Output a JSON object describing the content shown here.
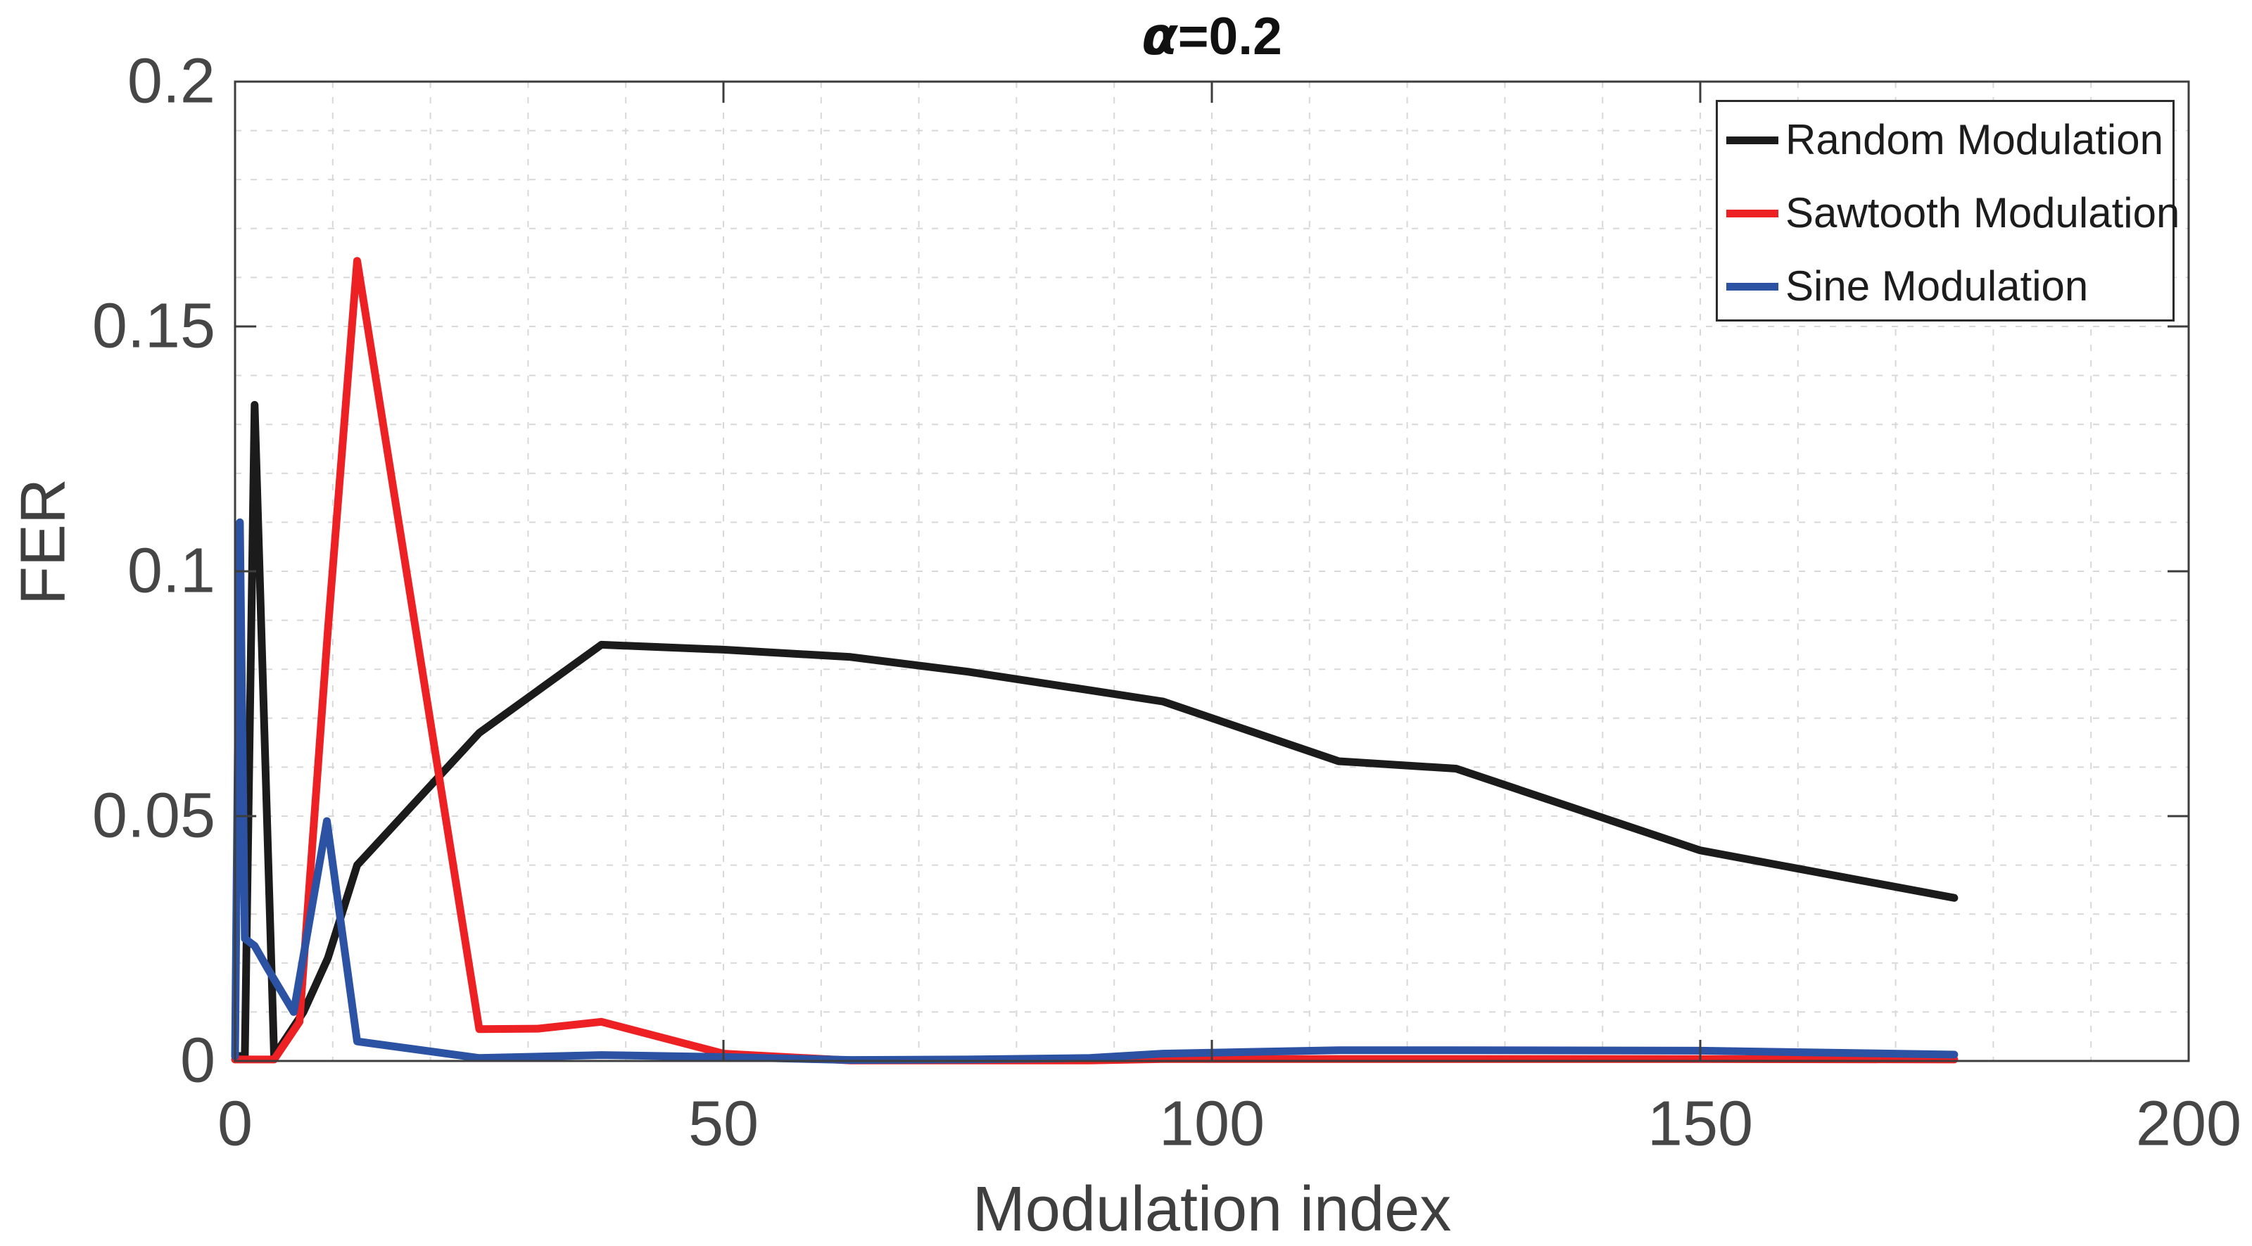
{
  "chart_data": {
    "type": "line",
    "title_symbol": "α",
    "title_rest": "=0.2",
    "xlabel": "Modulation index",
    "ylabel": "FER",
    "xlim": [
      0,
      200
    ],
    "ylim": [
      0,
      0.2
    ],
    "x_ticks": {
      "values": [
        0,
        50,
        100,
        150,
        200
      ],
      "labels": [
        "0",
        "50",
        "100",
        "150",
        "200"
      ]
    },
    "y_ticks": {
      "values": [
        0,
        0.05,
        0.1,
        0.15,
        0.2
      ],
      "labels": [
        "0",
        "0.05",
        "0.1",
        "0.15",
        "0.2"
      ]
    },
    "minor_grid_x_step": 10,
    "minor_grid_y_step": 0.01,
    "grid": true,
    "grid_color": "#d8d8d8",
    "axis_color": "#3d3d3d",
    "label_color": "#464646",
    "legend_position": "top-right",
    "series": [
      {
        "name": "Random Modulation",
        "color": "#1b1b1b",
        "points": [
          [
            0,
            0.001
          ],
          [
            1,
            0.001
          ],
          [
            2,
            0.134
          ],
          [
            4,
            0.001
          ],
          [
            5,
            0.004
          ],
          [
            7,
            0.01
          ],
          [
            9.5,
            0.021
          ],
          [
            12.5,
            0.04
          ],
          [
            25,
            0.067
          ],
          [
            37.5,
            0.085
          ],
          [
            50,
            0.084
          ],
          [
            63,
            0.0825
          ],
          [
            75,
            0.0795
          ],
          [
            87.5,
            0.0757
          ],
          [
            95,
            0.0734
          ],
          [
            113,
            0.0612
          ],
          [
            125,
            0.0597
          ],
          [
            150,
            0.043
          ],
          [
            176,
            0.0333
          ]
        ]
      },
      {
        "name": "Sawtooth Modulation",
        "color": "#ed2024",
        "points": [
          [
            0,
            0.0003
          ],
          [
            4,
            0.0003
          ],
          [
            6.6,
            0.008
          ],
          [
            9.5,
            0.088
          ],
          [
            12.5,
            0.1634
          ],
          [
            25,
            0.0065
          ],
          [
            31,
            0.0066
          ],
          [
            37.5,
            0.008
          ],
          [
            50,
            0.0015
          ],
          [
            63,
            0.0001
          ],
          [
            87.5,
            0.0001
          ],
          [
            95,
            0.0004
          ],
          [
            150,
            0.0004
          ],
          [
            176,
            0.0003
          ]
        ]
      },
      {
        "name": "Sine Modulation",
        "color": "#2b52a3",
        "points": [
          [
            0,
            0.001
          ],
          [
            0.5,
            0.11
          ],
          [
            1,
            0.025
          ],
          [
            2,
            0.0235
          ],
          [
            3.3,
            0.019
          ],
          [
            6,
            0.01
          ],
          [
            9.4,
            0.049
          ],
          [
            12.5,
            0.004
          ],
          [
            25,
            0.0006
          ],
          [
            37.5,
            0.0012
          ],
          [
            50,
            0.0008
          ],
          [
            63,
            0.0002
          ],
          [
            75,
            0.0003
          ],
          [
            87.5,
            0.0006
          ],
          [
            95,
            0.0015
          ],
          [
            113,
            0.0022
          ],
          [
            125,
            0.0022
          ],
          [
            150,
            0.0021
          ],
          [
            176,
            0.0013
          ]
        ]
      }
    ]
  }
}
